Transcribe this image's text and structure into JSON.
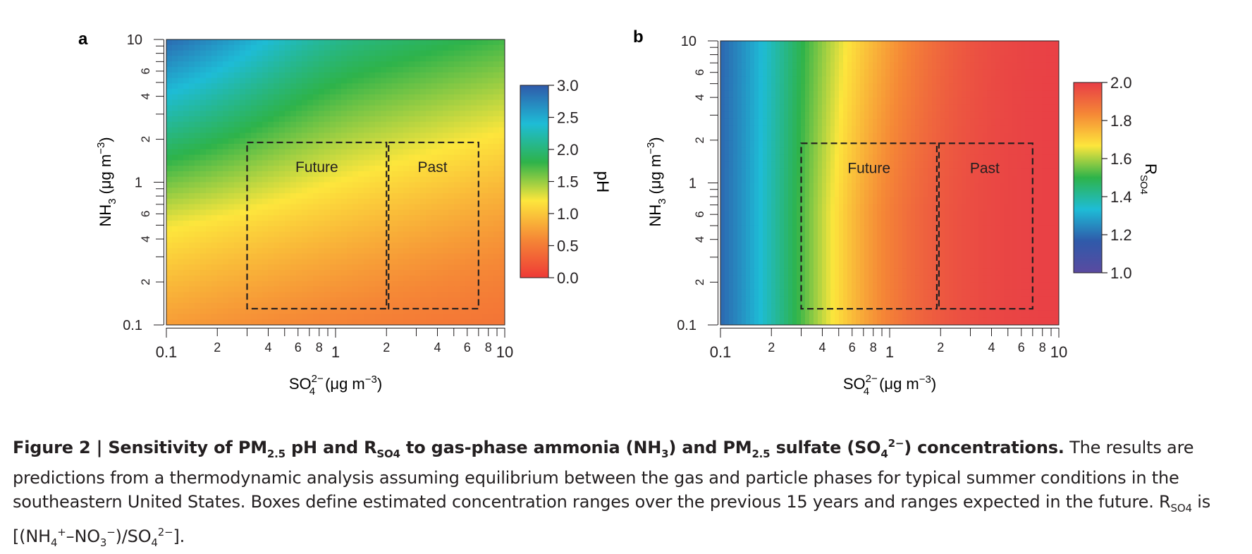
{
  "panels": [
    {
      "label": "a",
      "xlabel": "SO",
      "xlabel_sup": "2−",
      "xlabel_sub": "4",
      "xlabel_unit": "(μg m",
      "xlabel_unit_sup": "−3",
      "xlabel_unit_end": ")",
      "ylabel": "NH",
      "ylabel_sub": "3",
      "ylabel_unit": "(μg m",
      "ylabel_unit_sup": "−3",
      "ylabel_unit_end": ")",
      "colorbar_title": "pH",
      "colorbar_title_sub": "",
      "boxes": [
        {
          "name": "Future",
          "x_range": [
            0.3,
            2.0
          ],
          "y_range": [
            0.13,
            1.9
          ]
        },
        {
          "name": "Past",
          "x_range": [
            2.0,
            7.0
          ],
          "y_range": [
            0.13,
            1.9
          ]
        }
      ]
    },
    {
      "label": "b",
      "xlabel": "SO",
      "xlabel_sup": "2−",
      "xlabel_sub": "4",
      "xlabel_unit": "(μg m",
      "xlabel_unit_sup": "−3",
      "xlabel_unit_end": ")",
      "ylabel": "NH",
      "ylabel_sub": "3",
      "ylabel_unit": "(μg m",
      "ylabel_unit_sup": "−3",
      "ylabel_unit_end": ")",
      "colorbar_title": "R",
      "colorbar_title_sub": "SO4",
      "boxes": [
        {
          "name": "Future",
          "x_range": [
            0.3,
            1.9
          ],
          "y_range": [
            0.13,
            1.9
          ]
        },
        {
          "name": "Past",
          "x_range": [
            1.9,
            7.0
          ],
          "y_range": [
            0.13,
            1.9
          ]
        }
      ]
    }
  ],
  "chart_data": [
    {
      "type": "heatmap",
      "title": "",
      "xlabel": "SO4 2− (μg m−3)",
      "ylabel": "NH3 (μg m−3)",
      "xscale": "log",
      "yscale": "log",
      "xlim": [
        0.1,
        10
      ],
      "ylim": [
        0.1,
        10
      ],
      "x_major_ticks": [
        "0.1",
        "1",
        "10"
      ],
      "x_minor_labels": [
        "2",
        "4",
        "6",
        "8",
        "2",
        "4",
        "6",
        "8"
      ],
      "y_major_ticks": [
        "0.1",
        "1",
        "10"
      ],
      "y_minor_labels": [
        "2",
        "4",
        "6",
        "2",
        "4",
        "6"
      ],
      "colorbar": {
        "label": "pH",
        "range": [
          0.0,
          3.0
        ],
        "ticks": [
          "3.0",
          "2.5",
          "2.0",
          "1.5",
          "1.0",
          "0.5",
          "0.0"
        ]
      },
      "colormap": [
        "#ee3a36",
        "#f58836",
        "#fde63c",
        "#2eb34a",
        "#1ebcd6",
        "#2f5aaa"
      ],
      "regions": [
        "Future",
        "Past"
      ]
    },
    {
      "type": "heatmap",
      "title": "",
      "xlabel": "SO4 2− (μg m−3)",
      "ylabel": "NH3 (μg m−3)",
      "xscale": "log",
      "yscale": "log",
      "xlim": [
        0.1,
        10
      ],
      "ylim": [
        0.1,
        10
      ],
      "x_major_ticks": [
        "0.1",
        "1",
        "10"
      ],
      "x_minor_labels": [
        "2",
        "4",
        "6",
        "8",
        "2",
        "4",
        "6",
        "8"
      ],
      "y_major_ticks": [
        "0.1",
        "1",
        "10"
      ],
      "y_minor_labels": [
        "2",
        "4",
        "6",
        "2",
        "4",
        "6"
      ],
      "colorbar": {
        "label": "RSO4",
        "range": [
          1.0,
          2.0
        ],
        "ticks": [
          "2.0",
          "1.8",
          "1.6",
          "1.4",
          "1.2",
          "1.0"
        ]
      },
      "colormap": [
        "#5a4aa0",
        "#2f5aaa",
        "#1ebcd6",
        "#2eb34a",
        "#fde63c",
        "#f58836",
        "#e83d46"
      ],
      "regions": [
        "Future",
        "Past"
      ]
    }
  ],
  "caption": {
    "bold_prefix": "Figure 2 | Sensitivity of PM",
    "bold_sub1": "2.5",
    "bold_mid1": " pH and R",
    "bold_sub2": "SO4",
    "bold_mid2": " to gas-phase ammonia (NH",
    "bold_sub3": "3",
    "bold_mid3": ") and PM",
    "bold_sub4": "2.5",
    "bold_mid4": " sulfate (SO",
    "bold_sub5": "4",
    "bold_sup5": "2−",
    "bold_end": ") concentrations.",
    "text1": " The results are predictions from a thermodynamic analysis assuming equilibrium between the gas and particle phases for typical summer conditions in the southeastern United States. Boxes define estimated concentration ranges over the previous 15 years and ranges expected in the future. R",
    "text_sub": "SO4",
    "text2": " is [(NH",
    "text_sub2": "4",
    "text_sup2": "+",
    "text3": "–NO",
    "text_sub3": "3",
    "text_sup3": "−",
    "text4": ")/SO",
    "text_sub4": "4",
    "text_sup4": "2−",
    "text5": "]."
  }
}
